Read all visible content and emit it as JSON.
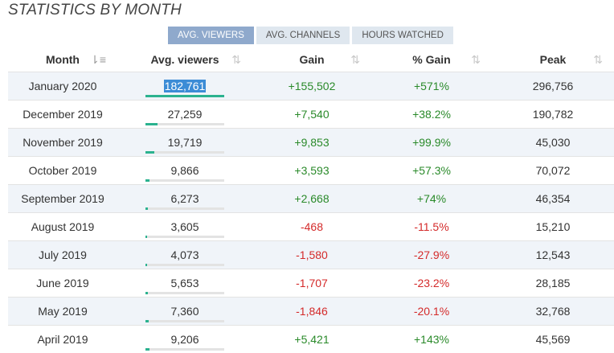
{
  "title": "STATISTICS BY MONTH",
  "tabs": [
    {
      "label": "AVG. VIEWERS",
      "active": true
    },
    {
      "label": "AVG. CHANNELS",
      "active": false
    },
    {
      "label": "HOURS WATCHED",
      "active": false
    }
  ],
  "columns": {
    "month": "Month",
    "avg_viewers": "Avg. viewers",
    "gain": "Gain",
    "pct_gain": "% Gain",
    "peak": "Peak"
  },
  "icons": {
    "sort_desc": "sort-descending-icon",
    "sort_both": "sort-both-icon"
  },
  "colors": {
    "positive": "#2a8a2a",
    "negative": "#d42a2a",
    "bar": "#2bb28f",
    "tab_active": "#8fa9cc"
  },
  "rows": [
    {
      "month": "January 2020",
      "avg_viewers": "182,761",
      "gain": "+155,502",
      "pct_gain": "+571%",
      "peak": "296,756",
      "bar": 1.0,
      "selected": true
    },
    {
      "month": "December 2019",
      "avg_viewers": "27,259",
      "gain": "+7,540",
      "pct_gain": "+38.2%",
      "peak": "190,782",
      "bar": 0.149
    },
    {
      "month": "November 2019",
      "avg_viewers": "19,719",
      "gain": "+9,853",
      "pct_gain": "+99.9%",
      "peak": "45,030",
      "bar": 0.108
    },
    {
      "month": "October 2019",
      "avg_viewers": "9,866",
      "gain": "+3,593",
      "pct_gain": "+57.3%",
      "peak": "70,072",
      "bar": 0.054
    },
    {
      "month": "September 2019",
      "avg_viewers": "6,273",
      "gain": "+2,668",
      "pct_gain": "+74%",
      "peak": "46,354",
      "bar": 0.034
    },
    {
      "month": "August 2019",
      "avg_viewers": "3,605",
      "gain": "-468",
      "pct_gain": "-11.5%",
      "peak": "15,210",
      "bar": 0.02
    },
    {
      "month": "July 2019",
      "avg_viewers": "4,073",
      "gain": "-1,580",
      "pct_gain": "-27.9%",
      "peak": "12,543",
      "bar": 0.022
    },
    {
      "month": "June 2019",
      "avg_viewers": "5,653",
      "gain": "-1,707",
      "pct_gain": "-23.2%",
      "peak": "28,185",
      "bar": 0.031
    },
    {
      "month": "May 2019",
      "avg_viewers": "7,360",
      "gain": "-1,846",
      "pct_gain": "-20.1%",
      "peak": "32,768",
      "bar": 0.04
    },
    {
      "month": "April 2019",
      "avg_viewers": "9,206",
      "gain": "+5,421",
      "pct_gain": "+143%",
      "peak": "45,569",
      "bar": 0.05
    }
  ]
}
